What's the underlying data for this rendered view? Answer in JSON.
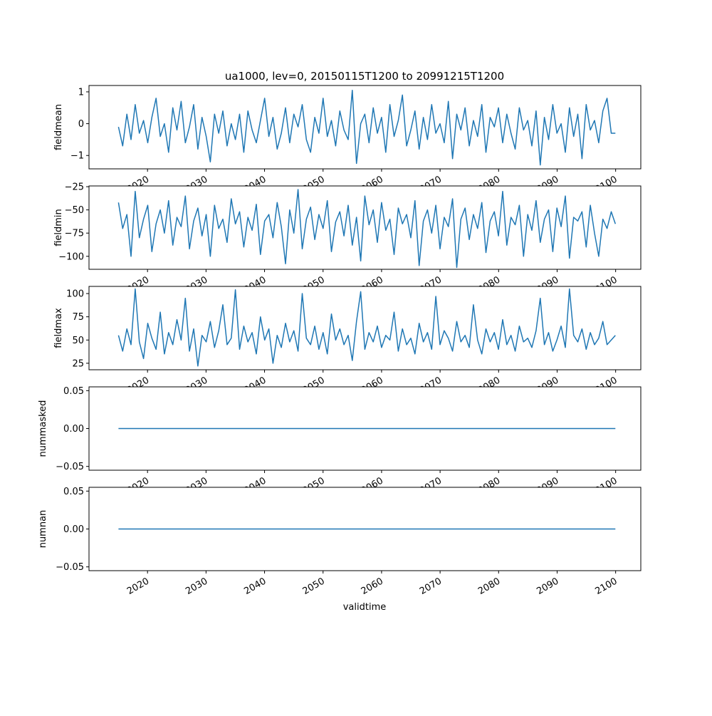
{
  "chart_data": {
    "type": "line",
    "title": "ua1000, lev=0, 20150115T1200 to 20991215T1200",
    "xlabel": "validtime",
    "x_start": 2015.04,
    "x_end": 2099.96,
    "xlim": [
      2010,
      2104.3
    ],
    "xticks": [
      2020,
      2030,
      2040,
      2050,
      2060,
      2070,
      2080,
      2090,
      2100
    ],
    "line_color": "#1f77b4",
    "panels": [
      {
        "ylabel": "fieldmean",
        "ylim": [
          -1.42,
          1.2
        ],
        "yticks": [
          1,
          0,
          -1
        ],
        "ytick_labels": [
          "1",
          "0",
          "−1"
        ],
        "values": [
          -0.1,
          -0.7,
          0.3,
          -0.5,
          0.6,
          -0.3,
          0.1,
          -0.6,
          0.2,
          0.8,
          -0.4,
          0.0,
          -0.9,
          0.5,
          -0.2,
          0.7,
          -0.6,
          -0.1,
          0.6,
          -0.8,
          0.2,
          -0.4,
          -1.2,
          0.3,
          -0.3,
          0.4,
          -0.7,
          0.0,
          -0.5,
          0.3,
          -0.9,
          0.4,
          -0.2,
          -0.6,
          0.1,
          0.8,
          -0.4,
          0.2,
          -0.8,
          -0.3,
          0.5,
          -0.6,
          0.3,
          -0.1,
          0.6,
          -0.5,
          -0.9,
          0.2,
          -0.3,
          0.8,
          -0.4,
          0.1,
          -0.7,
          0.4,
          -0.2,
          -0.5,
          1.05,
          -1.25,
          0.0,
          0.3,
          -0.6,
          0.5,
          -0.3,
          0.2,
          -0.9,
          0.6,
          -0.4,
          0.1,
          0.9,
          -0.7,
          -0.2,
          0.4,
          -0.8,
          0.2,
          -0.5,
          0.6,
          -0.3,
          0.0,
          -0.6,
          0.7,
          -1.1,
          0.3,
          -0.2,
          0.5,
          -0.7,
          0.1,
          -0.4,
          0.6,
          -0.9,
          0.2,
          -0.1,
          0.5,
          -0.6,
          0.3,
          -0.3,
          -0.8,
          0.5,
          -0.2,
          0.1,
          -0.7,
          0.4,
          -1.3,
          0.2,
          -0.5,
          0.6,
          -0.3,
          0.0,
          -0.9,
          0.5,
          -0.4,
          0.3,
          -1.1,
          0.6,
          -0.2,
          0.1,
          -0.6,
          0.4,
          0.8,
          -0.3,
          -0.3
        ]
      },
      {
        "ylabel": "fieldmin",
        "ylim": [
          -114,
          -24.2
        ],
        "yticks": [
          -25,
          -50,
          -75,
          -100
        ],
        "ytick_labels": [
          "−25",
          "−50",
          "−75",
          "−100"
        ],
        "values": [
          -42,
          -70,
          -55,
          -100,
          -30,
          -80,
          -60,
          -45,
          -95,
          -65,
          -50,
          -75,
          -40,
          -88,
          -58,
          -68,
          -35,
          -92,
          -62,
          -48,
          -78,
          -55,
          -100,
          -45,
          -70,
          -60,
          -85,
          -38,
          -65,
          -52,
          -90,
          -58,
          -72,
          -44,
          -98,
          -62,
          -55,
          -80,
          -42,
          -68,
          -108,
          -50,
          -75,
          -28,
          -92,
          -60,
          -47,
          -82,
          -55,
          -70,
          -40,
          -95,
          -63,
          -52,
          -78,
          -45,
          -88,
          -58,
          -105,
          -35,
          -66,
          -50,
          -85,
          -42,
          -72,
          -60,
          -98,
          -48,
          -65,
          -55,
          -80,
          -40,
          -110,
          -62,
          -50,
          -75,
          -45,
          -92,
          -58,
          -68,
          -38,
          -112,
          -60,
          -48,
          -82,
          -55,
          -70,
          -42,
          -96,
          -62,
          -52,
          -78,
          -30,
          -88,
          -58,
          -66,
          -45,
          -100,
          -55,
          -72,
          -40,
          -85,
          -60,
          -50,
          -95,
          -48,
          -68,
          -35,
          -102,
          -58,
          -62,
          -52,
          -90,
          -45,
          -75,
          -100,
          -60,
          -70,
          -52,
          -65
        ]
      },
      {
        "ylabel": "fieldmax",
        "ylim": [
          18,
          107.7
        ],
        "yticks": [
          100,
          75,
          50,
          25
        ],
        "ytick_labels": [
          "100",
          "75",
          "50",
          "25"
        ],
        "values": [
          55,
          38,
          62,
          45,
          105,
          48,
          30,
          68,
          52,
          40,
          80,
          35,
          58,
          45,
          72,
          50,
          95,
          38,
          62,
          22,
          55,
          48,
          70,
          42,
          60,
          88,
          45,
          52,
          104,
          40,
          65,
          48,
          58,
          35,
          75,
          50,
          62,
          25,
          55,
          42,
          68,
          48,
          60,
          38,
          100,
          52,
          45,
          65,
          40,
          58,
          35,
          78,
          50,
          62,
          45,
          55,
          28,
          70,
          102,
          40,
          58,
          48,
          65,
          42,
          55,
          50,
          80,
          38,
          62,
          45,
          52,
          35,
          68,
          48,
          58,
          40,
          97,
          45,
          60,
          52,
          38,
          70,
          48,
          55,
          42,
          88,
          50,
          35,
          62,
          48,
          58,
          40,
          72,
          45,
          55,
          38,
          65,
          48,
          52,
          42,
          60,
          95,
          45,
          58,
          38,
          50,
          65,
          42,
          105,
          55,
          48,
          62,
          40,
          58,
          45,
          52,
          70,
          45,
          50,
          55
        ]
      },
      {
        "ylabel": "nummasked",
        "ylim": [
          -0.055,
          0.055
        ],
        "yticks": [
          0.05,
          0,
          -0.05
        ],
        "ytick_labels": [
          "0.05",
          "0.00",
          "−0.05"
        ],
        "values": [
          0,
          0
        ]
      },
      {
        "ylabel": "numnan",
        "ylim": [
          -0.055,
          0.055
        ],
        "yticks": [
          0.05,
          0,
          -0.05
        ],
        "ytick_labels": [
          "0.05",
          "0.00",
          "−0.05"
        ],
        "values": [
          0,
          0
        ]
      }
    ]
  }
}
